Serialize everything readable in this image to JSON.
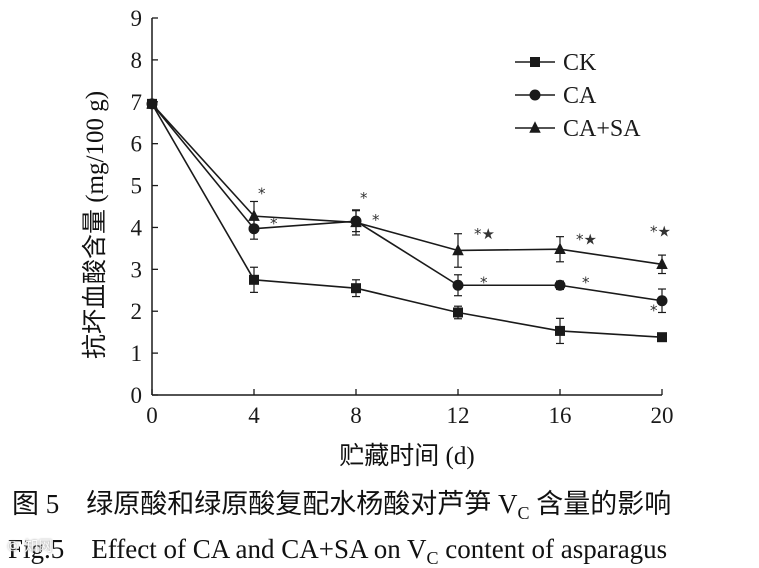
{
  "chart_data": {
    "type": "line",
    "x": [
      0,
      4,
      8,
      12,
      16,
      20
    ],
    "xlim": [
      0,
      20
    ],
    "ylim": [
      0,
      9
    ],
    "xticks": [
      0,
      4,
      8,
      12,
      16,
      20
    ],
    "yticks": [
      0,
      1,
      2,
      3,
      4,
      5,
      6,
      7,
      8,
      9
    ],
    "xlabel": "贮藏时间 (d)",
    "ylabel": "抗坏血酸含量 (mg/100 g)",
    "legend_position": "top-right",
    "series": [
      {
        "name": "CK",
        "marker": "square",
        "values": [
          6.95,
          2.75,
          2.55,
          1.97,
          1.53,
          1.38
        ],
        "errors": [
          0,
          0.3,
          0.2,
          0.15,
          0.3,
          0.05
        ]
      },
      {
        "name": "CA",
        "marker": "circle",
        "values": [
          6.95,
          3.97,
          4.15,
          2.62,
          2.62,
          2.25
        ],
        "errors": [
          0,
          0.25,
          0.25,
          0.25,
          0.1,
          0.28
        ]
      },
      {
        "name": "CA+SA",
        "marker": "triangle",
        "values": [
          6.95,
          4.27,
          4.12,
          3.45,
          3.48,
          3.12
        ],
        "errors": [
          0,
          0.35,
          0.3,
          0.4,
          0.3,
          0.22
        ]
      }
    ],
    "annotations": [
      {
        "x": 4,
        "y": 4.5,
        "text": "*"
      },
      {
        "x": 4,
        "y": 3.97,
        "text": "*"
      },
      {
        "x": 8,
        "y": 4.35,
        "text": "*"
      },
      {
        "x": 8,
        "y": 4.15,
        "text": "*"
      },
      {
        "x": 12,
        "y": 3.6,
        "text": "*★"
      },
      {
        "x": 12,
        "y": 2.62,
        "text": "*"
      },
      {
        "x": 16,
        "y": 3.5,
        "text": "*★"
      },
      {
        "x": 16,
        "y": 2.62,
        "text": "*"
      },
      {
        "x": 20,
        "y": 3.45,
        "text": "*★"
      },
      {
        "x": 20,
        "y": 1.95,
        "text": "*"
      }
    ]
  },
  "caption": {
    "zh_prefix": "图 5　绿原酸和绿原酸复配水杨酸对芦笋 V",
    "zh_sub": "C",
    "zh_suffix": " 含量的影响",
    "en_prefix": "Fig.5　Effect of CA and CA+SA on V",
    "en_sub": "C",
    "en_suffix": " content of asparagus"
  },
  "watermark": "© 知网"
}
